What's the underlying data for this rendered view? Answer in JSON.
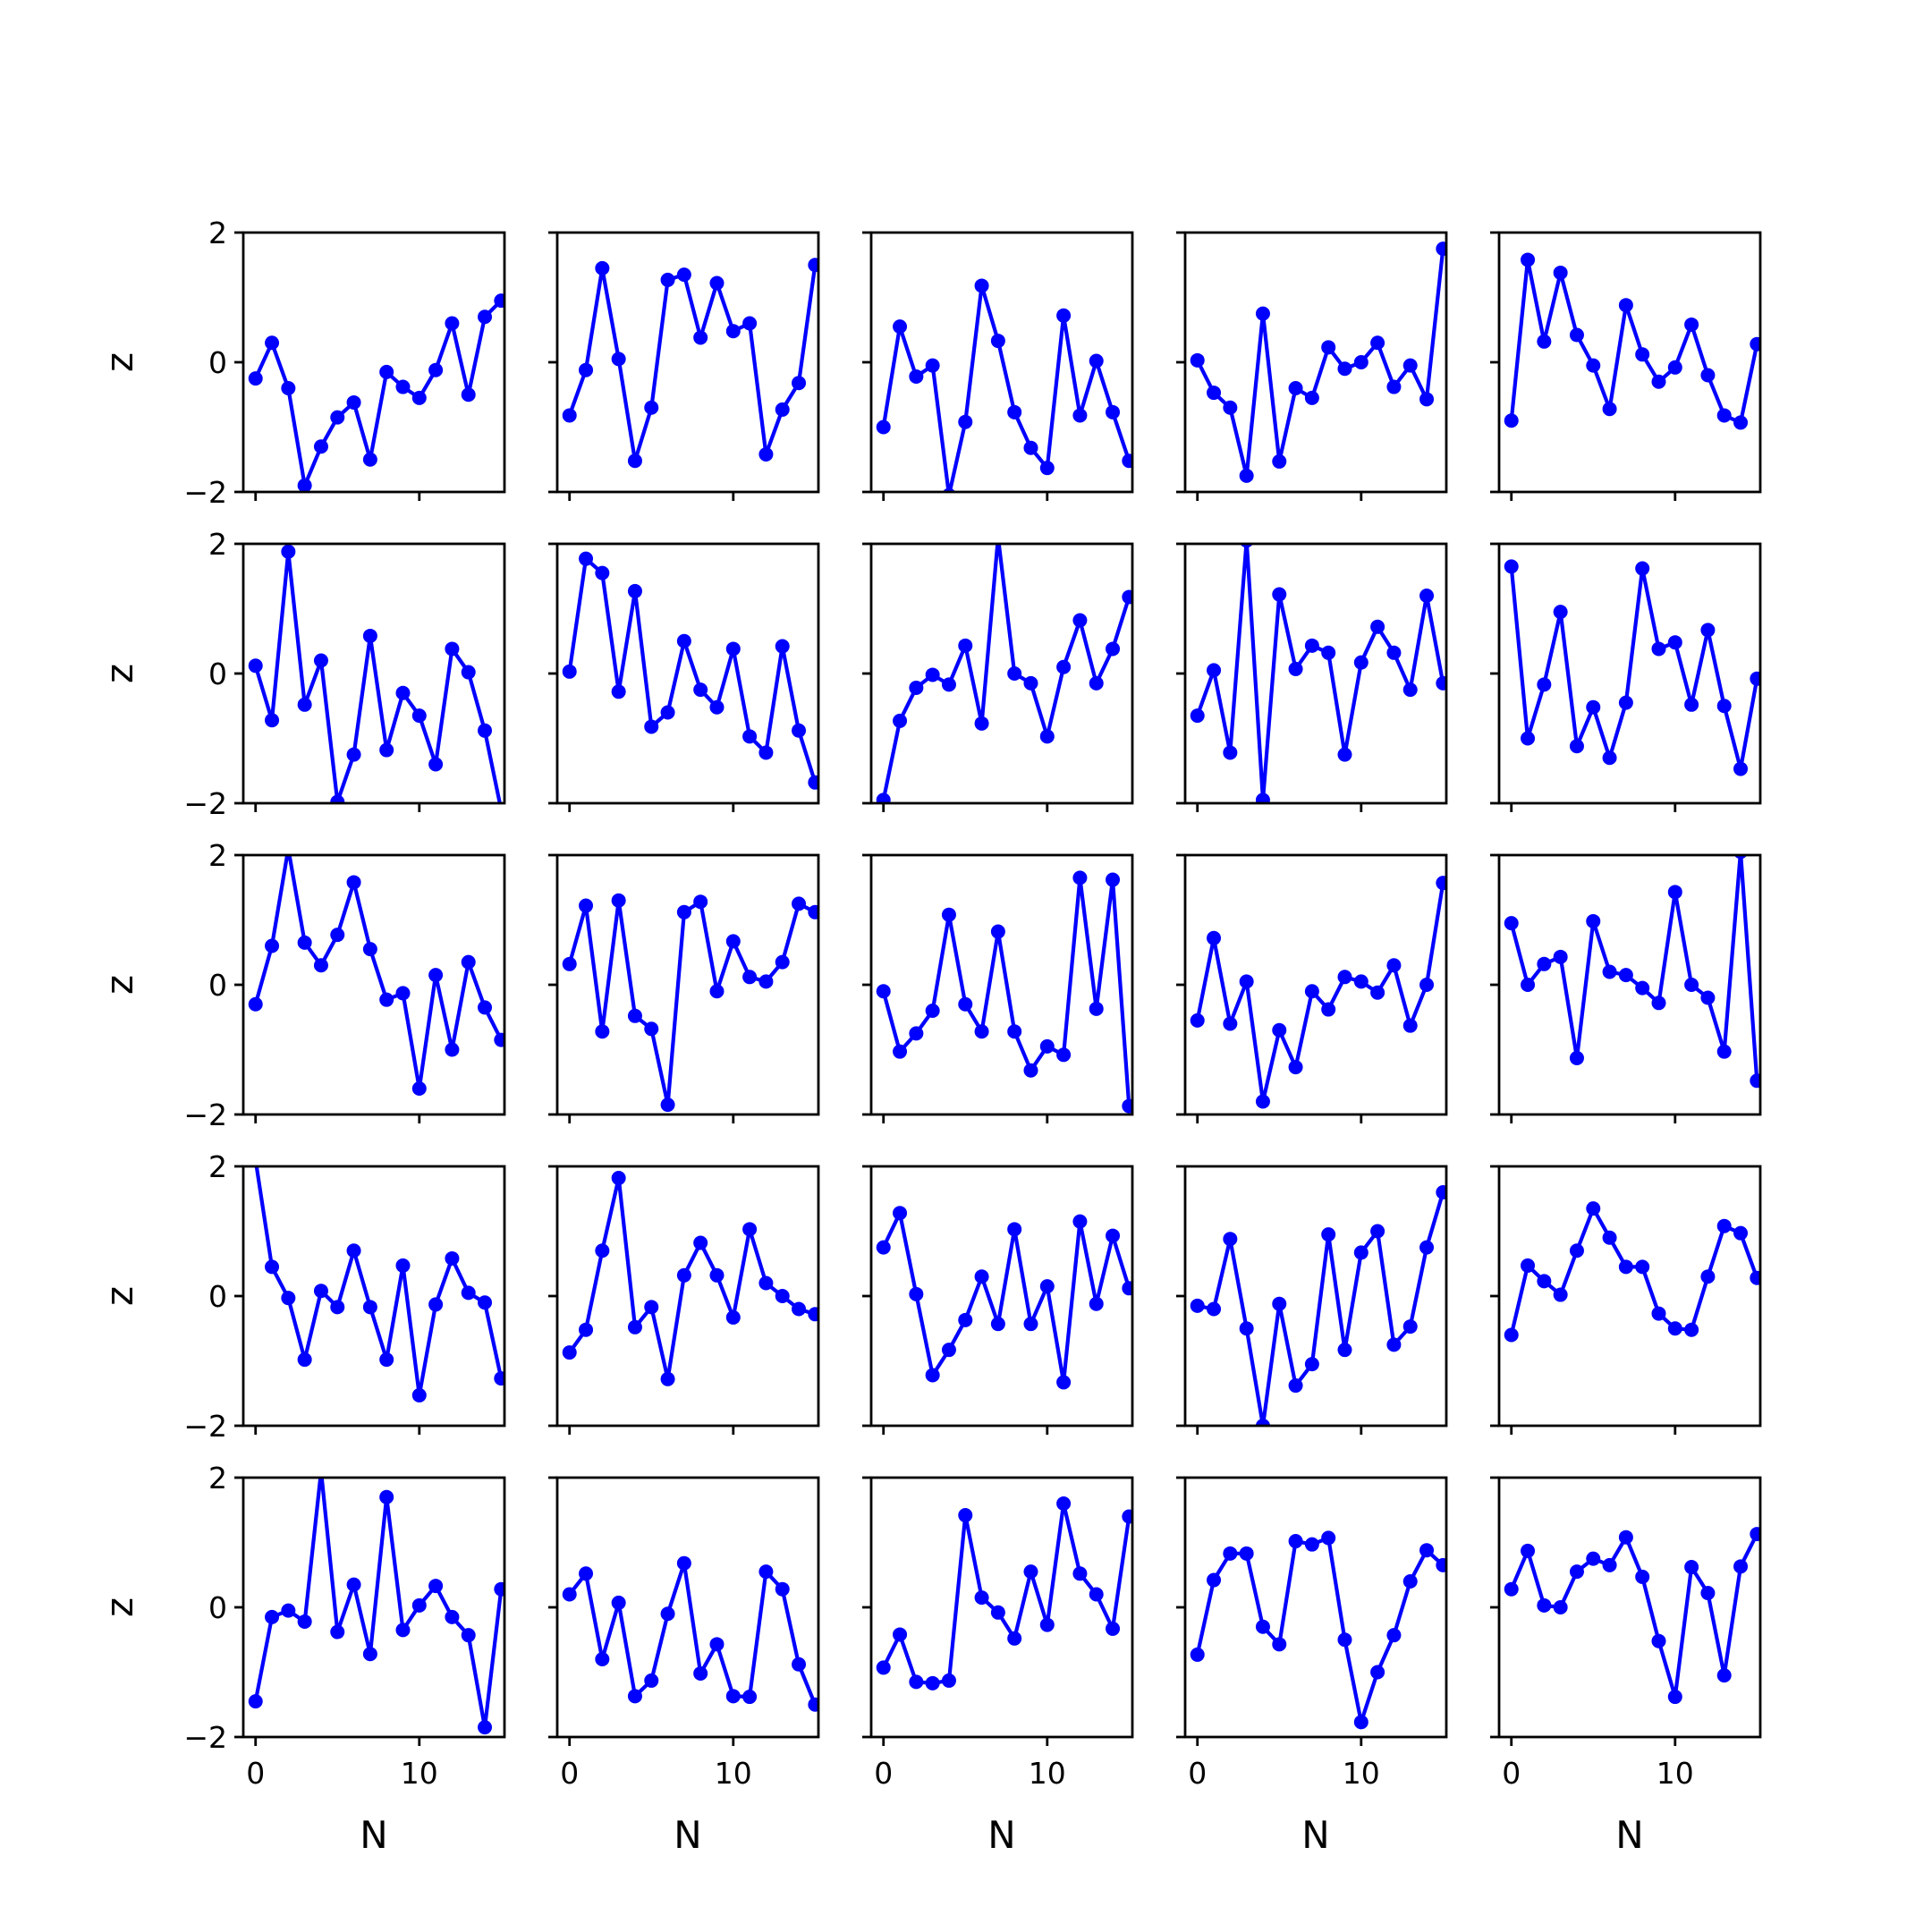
{
  "chart_data": {
    "type": "line",
    "layout": "grid",
    "rows": 5,
    "cols": 5,
    "color": "#0000ff",
    "marker": "circle",
    "xlabel": "N",
    "ylabel": "z",
    "xlim": [
      -0.75,
      15.2
    ],
    "ylim": [
      -2,
      2
    ],
    "xticks": [
      0,
      10
    ],
    "yticks": [
      -2,
      0,
      2
    ],
    "xtick_labels": [
      "0",
      "10"
    ],
    "ytick_labels": [
      "−2",
      "0",
      "2"
    ],
    "x": [
      0,
      1,
      2,
      3,
      4,
      5,
      6,
      7,
      8,
      9,
      10,
      11,
      12,
      13,
      14,
      15
    ],
    "panels": [
      {
        "row": 1,
        "col": 1,
        "y": [
          -0.25,
          0.3,
          -0.4,
          -1.9,
          -1.3,
          -0.85,
          -0.62,
          -1.5,
          -0.15,
          -0.38,
          -0.55,
          -0.12,
          0.6,
          -0.5,
          0.7,
          0.95
        ]
      },
      {
        "row": 1,
        "col": 2,
        "y": [
          -0.82,
          -0.12,
          1.45,
          0.05,
          -1.52,
          -0.7,
          1.27,
          1.35,
          0.38,
          1.22,
          0.48,
          0.6,
          -1.42,
          -0.73,
          -0.32,
          1.5
        ]
      },
      {
        "row": 1,
        "col": 3,
        "y": [
          -1.0,
          0.55,
          -0.22,
          -0.05,
          -2.05,
          -0.92,
          1.18,
          0.33,
          -0.77,
          -1.32,
          -1.63,
          0.72,
          -0.82,
          0.02,
          -0.77,
          -1.52
        ]
      },
      {
        "row": 1,
        "col": 4,
        "y": [
          0.03,
          -0.47,
          -0.7,
          -1.75,
          0.75,
          -1.53,
          -0.4,
          -0.55,
          0.23,
          -0.1,
          0.0,
          0.3,
          -0.38,
          -0.05,
          -0.57,
          1.75
        ]
      },
      {
        "row": 1,
        "col": 5,
        "y": [
          -0.9,
          1.58,
          0.32,
          1.38,
          0.42,
          -0.05,
          -0.72,
          0.88,
          0.12,
          -0.3,
          -0.08,
          0.58,
          -0.2,
          -0.82,
          -0.93,
          0.28
        ]
      },
      {
        "row": 2,
        "col": 1,
        "y": [
          0.12,
          -0.72,
          1.88,
          -0.48,
          0.2,
          -1.98,
          -1.25,
          0.58,
          -1.18,
          -0.3,
          -0.65,
          -1.4,
          0.38,
          0.02,
          -0.88,
          -2.1
        ]
      },
      {
        "row": 2,
        "col": 2,
        "y": [
          0.03,
          1.77,
          1.55,
          -0.28,
          1.27,
          -0.82,
          -0.6,
          0.5,
          -0.25,
          -0.52,
          0.38,
          -0.97,
          -1.22,
          0.42,
          -0.88,
          -1.68
        ]
      },
      {
        "row": 2,
        "col": 3,
        "y": [
          -1.95,
          -0.73,
          -0.22,
          -0.02,
          -0.17,
          0.43,
          -0.77,
          2.1,
          0.0,
          -0.15,
          -0.97,
          0.1,
          0.82,
          -0.15,
          0.38,
          1.18
        ]
      },
      {
        "row": 2,
        "col": 4,
        "y": [
          -0.65,
          0.05,
          -1.22,
          2.05,
          -1.95,
          1.22,
          0.07,
          0.43,
          0.32,
          -1.25,
          0.17,
          0.72,
          0.32,
          -0.25,
          1.2,
          -0.15
        ]
      },
      {
        "row": 2,
        "col": 5,
        "y": [
          1.65,
          -1.0,
          -0.17,
          0.95,
          -1.12,
          -0.52,
          -1.3,
          -0.45,
          1.62,
          0.38,
          0.48,
          -0.48,
          0.67,
          -0.5,
          -1.47,
          -0.08
        ]
      },
      {
        "row": 3,
        "col": 1,
        "y": [
          -0.3,
          0.6,
          2.1,
          0.65,
          0.3,
          0.77,
          1.58,
          0.55,
          -0.23,
          -0.13,
          -1.6,
          0.15,
          -1.0,
          0.35,
          -0.35,
          -0.85
        ]
      },
      {
        "row": 3,
        "col": 2,
        "y": [
          0.32,
          1.22,
          -0.72,
          1.3,
          -0.48,
          -0.68,
          -1.85,
          1.12,
          1.28,
          -0.1,
          0.67,
          0.12,
          0.05,
          0.35,
          1.25,
          1.12
        ]
      },
      {
        "row": 3,
        "col": 3,
        "y": [
          -0.1,
          -1.03,
          -0.75,
          -0.4,
          1.08,
          -0.3,
          -0.72,
          0.82,
          -0.72,
          -1.32,
          -0.95,
          -1.08,
          1.65,
          -0.37,
          1.62,
          -1.87
        ]
      },
      {
        "row": 3,
        "col": 4,
        "y": [
          -0.55,
          0.72,
          -0.6,
          0.05,
          -1.8,
          -0.7,
          -1.27,
          -0.1,
          -0.38,
          0.12,
          0.05,
          -0.12,
          0.3,
          -0.63,
          0.0,
          1.57
        ]
      },
      {
        "row": 3,
        "col": 5,
        "y": [
          0.95,
          0.0,
          0.32,
          0.43,
          -1.13,
          0.98,
          0.2,
          0.15,
          -0.05,
          -0.28,
          1.43,
          0.0,
          -0.2,
          -1.03,
          2.05,
          -1.48
        ]
      },
      {
        "row": 4,
        "col": 1,
        "y": [
          2.1,
          0.45,
          -0.03,
          -0.98,
          0.08,
          -0.17,
          0.7,
          -0.17,
          -0.98,
          0.47,
          -1.53,
          -0.13,
          0.58,
          0.05,
          -0.1,
          -1.27
        ]
      },
      {
        "row": 4,
        "col": 2,
        "y": [
          -0.87,
          -0.52,
          0.7,
          1.82,
          -0.48,
          -0.17,
          -1.28,
          0.32,
          0.82,
          0.32,
          -0.33,
          1.03,
          0.2,
          0.0,
          -0.2,
          -0.28
        ]
      },
      {
        "row": 4,
        "col": 3,
        "y": [
          0.75,
          1.28,
          0.03,
          -1.22,
          -0.83,
          -0.37,
          0.3,
          -0.43,
          1.03,
          -0.43,
          0.15,
          -1.33,
          1.15,
          -0.12,
          0.93,
          0.12
        ]
      },
      {
        "row": 4,
        "col": 4,
        "y": [
          -0.15,
          -0.2,
          0.88,
          -0.5,
          -2.0,
          -0.12,
          -1.38,
          -1.05,
          0.95,
          -0.83,
          0.67,
          1.0,
          -0.75,
          -0.47,
          0.75,
          1.6
        ]
      },
      {
        "row": 4,
        "col": 5,
        "y": [
          -0.6,
          0.47,
          0.23,
          0.02,
          0.7,
          1.35,
          0.9,
          0.45,
          0.45,
          -0.27,
          -0.5,
          -0.52,
          0.3,
          1.08,
          0.97,
          0.28
        ]
      },
      {
        "row": 5,
        "col": 1,
        "y": [
          -1.45,
          -0.15,
          -0.05,
          -0.22,
          2.1,
          -0.38,
          0.35,
          -0.72,
          1.7,
          -0.35,
          0.03,
          0.33,
          -0.15,
          -0.43,
          -1.85,
          0.28
        ]
      },
      {
        "row": 5,
        "col": 2,
        "y": [
          0.2,
          0.52,
          -0.8,
          0.07,
          -1.37,
          -1.13,
          -0.1,
          0.68,
          -1.02,
          -0.57,
          -1.37,
          -1.38,
          0.55,
          0.28,
          -0.88,
          -1.5
        ]
      },
      {
        "row": 5,
        "col": 3,
        "y": [
          -0.93,
          -0.42,
          -1.15,
          -1.17,
          -1.13,
          1.42,
          0.15,
          -0.08,
          -0.48,
          0.55,
          -0.27,
          1.6,
          0.52,
          0.2,
          -0.33,
          1.4
        ]
      },
      {
        "row": 5,
        "col": 4,
        "y": [
          -0.73,
          0.42,
          0.83,
          0.83,
          -0.3,
          -0.57,
          1.02,
          0.97,
          1.07,
          -0.5,
          -1.77,
          -1.0,
          -0.43,
          0.4,
          0.88,
          0.65
        ]
      },
      {
        "row": 5,
        "col": 5,
        "y": [
          0.28,
          0.87,
          0.03,
          0.0,
          0.55,
          0.75,
          0.65,
          1.08,
          0.47,
          -0.52,
          -1.38,
          0.62,
          0.22,
          -1.05,
          0.63,
          1.13
        ]
      }
    ]
  }
}
